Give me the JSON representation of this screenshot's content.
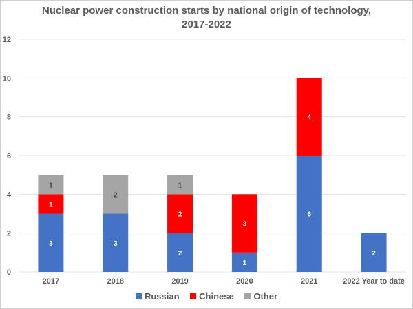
{
  "chart_data": {
    "type": "bar",
    "stacked": true,
    "title_line1": "Nuclear power construction starts by national origin of technology,",
    "title_line2": "2017-2022",
    "xlabel": "",
    "ylabel": "",
    "ylim": [
      0,
      12
    ],
    "yticks": [
      0,
      2,
      4,
      6,
      8,
      10,
      12
    ],
    "grid": true,
    "legend_position": "bottom",
    "categories": [
      "2017",
      "2018",
      "2019",
      "2020",
      "2021",
      "2022 Year to date"
    ],
    "series": [
      {
        "name": "Russian",
        "color": "#4472C4",
        "label_color": "#ffffff",
        "values": [
          3,
          3,
          2,
          1,
          6,
          2
        ]
      },
      {
        "name": "Chinese",
        "color": "#FF0000",
        "label_color": "#ffffff",
        "values": [
          1,
          0,
          2,
          3,
          4,
          0
        ]
      },
      {
        "name": "Other",
        "color": "#A5A5A5",
        "label_color": "#404040",
        "values": [
          1,
          2,
          1,
          0,
          0,
          0
        ]
      }
    ]
  }
}
